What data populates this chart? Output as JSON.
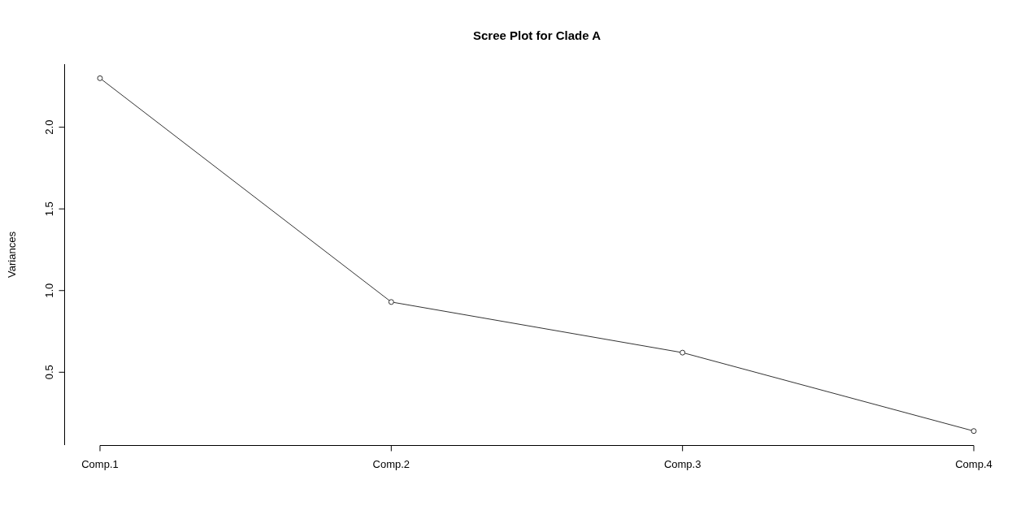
{
  "chart_data": {
    "type": "line",
    "title": "Scree Plot for Clade A",
    "ylabel": "Variances",
    "categories": [
      "Comp.1",
      "Comp.2",
      "Comp.3",
      "Comp.4"
    ],
    "series": [
      {
        "color": "#333333",
        "values": [
          2.3,
          0.93,
          0.62,
          0.14
        ]
      }
    ],
    "ylim": [
      0.054,
      2.386
    ],
    "yticks": [
      {
        "value": 0.5,
        "label": "0.5"
      },
      {
        "value": 1,
        "label": "1.0"
      },
      {
        "value": 1.5,
        "label": "1.5"
      },
      {
        "value": 2,
        "label": "2.0"
      }
    ],
    "marker": "circle",
    "line_style": "solid",
    "grid": false,
    "legend": false
  }
}
